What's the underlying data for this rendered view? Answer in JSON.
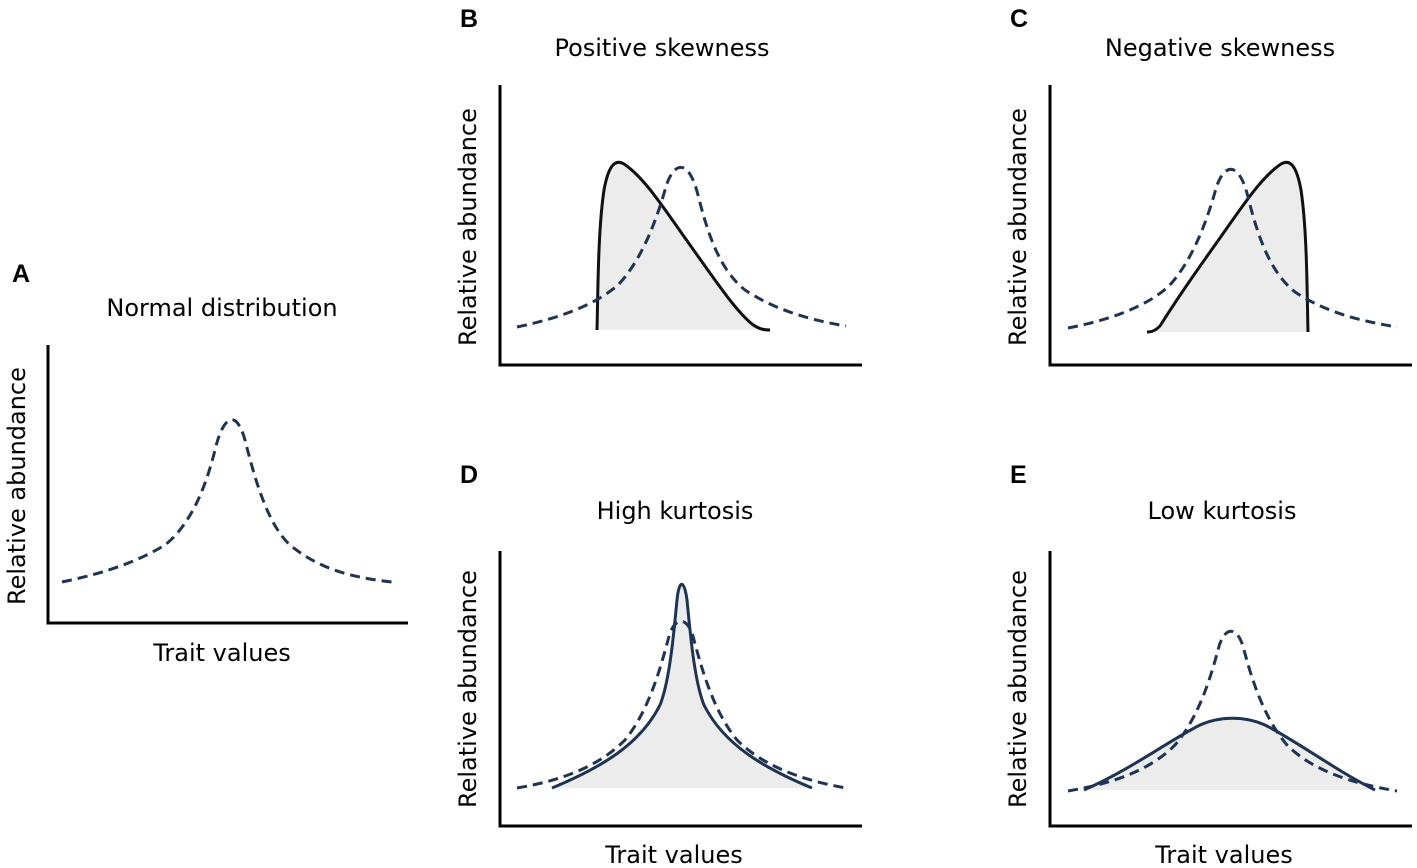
{
  "figure": {
    "panels": [
      {
        "id": "A",
        "letter": "A",
        "title": "Normal distribution",
        "ylabel": "Relative abundance",
        "xlabel": "Trait values",
        "reference_curve": "normal",
        "comparison_curve": null
      },
      {
        "id": "B",
        "letter": "B",
        "title": "Positive skewness",
        "ylabel": "Relative abundance",
        "xlabel": "",
        "reference_curve": "normal",
        "comparison_curve": "positively-skewed"
      },
      {
        "id": "C",
        "letter": "C",
        "title": "Negative skewness",
        "ylabel": "Relative abundance",
        "xlabel": "",
        "reference_curve": "normal",
        "comparison_curve": "negatively-skewed"
      },
      {
        "id": "D",
        "letter": "D",
        "title": "High kurtosis",
        "ylabel": "Relative abundance",
        "xlabel": "Trait values",
        "reference_curve": "normal",
        "comparison_curve": "leptokurtic"
      },
      {
        "id": "E",
        "letter": "E",
        "title": "Low kurtosis",
        "ylabel": "Relative abundance",
        "xlabel": "Trait values",
        "reference_curve": "normal",
        "comparison_curve": "platykurtic"
      }
    ],
    "colors": {
      "reference_stroke": "#1f3353",
      "skew_stroke": "#111111",
      "kurtosis_stroke": "#1f3353",
      "fill": "#ececec",
      "axis": "#000000"
    }
  }
}
